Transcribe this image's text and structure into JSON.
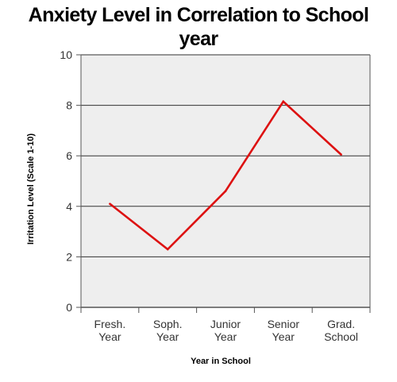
{
  "chart_data": {
    "type": "line",
    "title": "Anxiety Level in Correlation to School year",
    "xlabel": "Year in School",
    "ylabel": "Irritation Level (Scale 1-10)",
    "categories": [
      [
        "Fresh.",
        "Year"
      ],
      [
        "Soph.",
        "Year"
      ],
      [
        "Junior",
        "Year"
      ],
      [
        "Senior",
        "Year"
      ],
      [
        "Grad.",
        "School"
      ]
    ],
    "series": [
      {
        "values": [
          4.1,
          2.3,
          4.6,
          8.15,
          6.05
        ]
      }
    ],
    "ylim": [
      0,
      10
    ],
    "yticks": [
      0,
      2,
      4,
      6,
      8,
      10
    ],
    "grid": true,
    "legend": "none",
    "colors": {
      "line": "#dd1111",
      "plot_background": "#eeeeee",
      "grid": "#333333"
    }
  }
}
